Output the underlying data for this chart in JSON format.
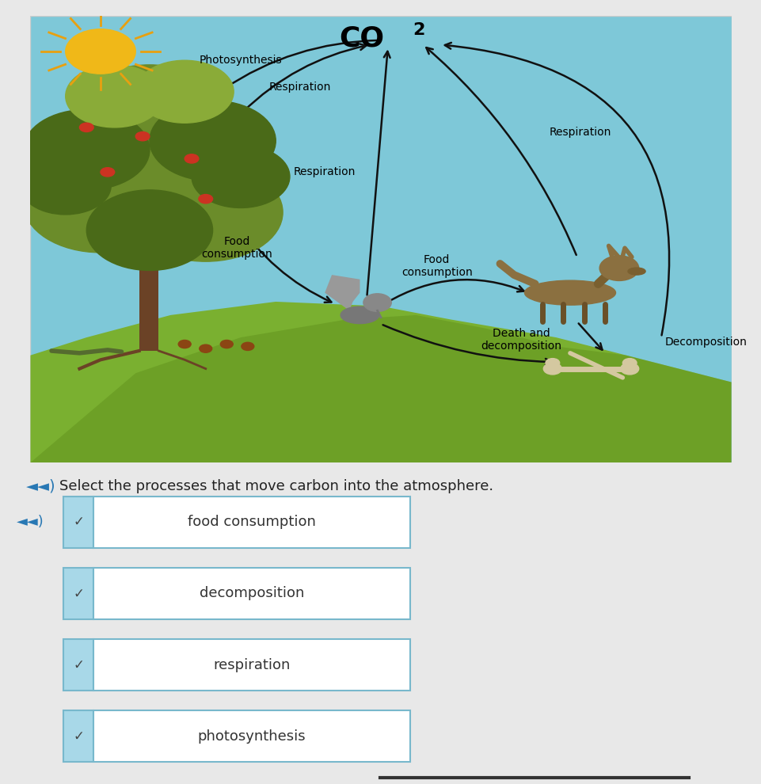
{
  "bg_color": "#e8e8e8",
  "diagram_bg": "#7ec8d8",
  "ground_color": "#7ab030",
  "ground_dark": "#5a8a18",
  "question_text": "Select the processes that move carbon into the atmosphere.",
  "choices": [
    "food consumption",
    "decomposition",
    "respiration",
    "photosynthesis"
  ],
  "choice_bg": "#a8d8e8",
  "choice_border": "#78b8cc",
  "choice_text_color": "#333333",
  "check_color": "#444444",
  "speaker_color": "#2878b4",
  "sun_color": "#f0b818",
  "sun_ray_color": "#e8a010",
  "trunk_color": "#6B4226",
  "tree_green1": "#6b8c2a",
  "tree_green2": "#4a6a18",
  "tree_green3": "#8aab38",
  "wolf_body": "#8B7355",
  "squirrel_color": "#888888",
  "bone_color": "#d4c8a0",
  "arrow_color": "#111111",
  "label_fontsize": 10,
  "choice_fontsize": 13,
  "co2_fontsize": 26
}
